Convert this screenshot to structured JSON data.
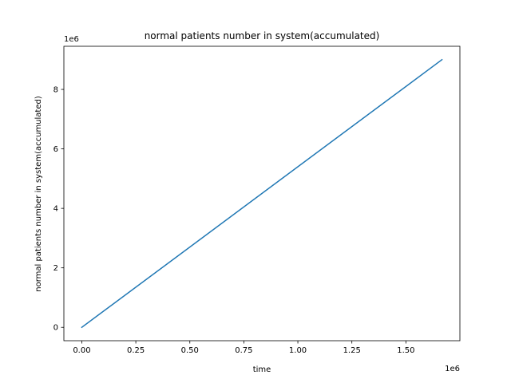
{
  "chart_data": {
    "type": "line",
    "title": "normal patients number in system(accumulated)",
    "xlabel": "time",
    "ylabel": "normal patients number in system(accumulated)",
    "x_offset_text": "1e6",
    "y_offset_text": "1e6",
    "xlim": [
      -0.083,
      1.75
    ],
    "ylim": [
      -0.45,
      9.45
    ],
    "x_ticks": [
      0.0,
      0.25,
      0.5,
      0.75,
      1.0,
      1.25,
      1.5
    ],
    "x_tick_labels": [
      "0.00",
      "0.25",
      "0.50",
      "0.75",
      "1.00",
      "1.25",
      "1.50"
    ],
    "y_ticks": [
      0,
      2,
      4,
      6,
      8
    ],
    "y_tick_labels": [
      "0",
      "2",
      "4",
      "6",
      "8"
    ],
    "grid": false,
    "series": [
      {
        "color": "#1f77b4",
        "x": [
          0.0,
          1.667
        ],
        "y": [
          0.0,
          9.0
        ]
      }
    ]
  }
}
